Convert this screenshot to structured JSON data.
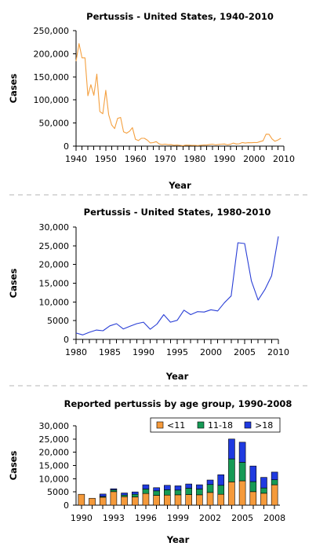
{
  "chart_data": [
    {
      "type": "line",
      "title": "Pertussis - United States, 1940-2010",
      "xlabel": "Year",
      "ylabel": "Cases",
      "xlim": [
        1940,
        2010
      ],
      "ylim": [
        0,
        250000
      ],
      "yticks": [
        "0",
        "50,000",
        "100,000",
        "150,000",
        "200,000",
        "250,000"
      ],
      "xticks": [
        "1940",
        "1950",
        "1960",
        "1970",
        "1980",
        "1990",
        "2000",
        "2010"
      ],
      "grid": false,
      "series": [
        {
          "color": "#f4a040",
          "x": [
            1940,
            1941,
            1942,
            1943,
            1944,
            1945,
            1946,
            1947,
            1948,
            1949,
            1950,
            1951,
            1952,
            1953,
            1954,
            1955,
            1956,
            1957,
            1958,
            1959,
            1960,
            1961,
            1962,
            1963,
            1964,
            1965,
            1966,
            1967,
            1968,
            1969,
            1970,
            1971,
            1972,
            1973,
            1974,
            1975,
            1976,
            1977,
            1978,
            1979,
            1980,
            1981,
            1982,
            1983,
            1984,
            1985,
            1986,
            1987,
            1988,
            1989,
            1990,
            1991,
            1992,
            1993,
            1994,
            1995,
            1996,
            1997,
            1998,
            1999,
            2000,
            2001,
            2002,
            2003,
            2004,
            2005,
            2006,
            2007,
            2008,
            2009
          ],
          "values": [
            184000,
            222000,
            191000,
            191000,
            109000,
            133000,
            110000,
            156000,
            75000,
            70000,
            121000,
            68000,
            46000,
            38000,
            60000,
            62000,
            31000,
            28000,
            32000,
            40000,
            15000,
            12000,
            17000,
            17000,
            13000,
            7000,
            7700,
            9700,
            4800,
            3300,
            4200,
            3000,
            3300,
            1800,
            2400,
            1700,
            1000,
            2200,
            2000,
            1600,
            1700,
            1200,
            1900,
            2500,
            2300,
            3600,
            4200,
            2800,
            3500,
            4200,
            4600,
            2700,
            4100,
            6600,
            4600,
            5100,
            7800,
            6600,
            7400,
            7300,
            7900,
            7600,
            9800,
            11600,
            25800,
            25600,
            15600,
            10500,
            13300,
            17000
          ]
        }
      ]
    },
    {
      "type": "line",
      "title": "Pertussis - United States, 1980-2010",
      "xlabel": "Year",
      "ylabel": "Cases",
      "xlim": [
        1980,
        2010
      ],
      "ylim": [
        0,
        30000
      ],
      "yticks": [
        "0",
        "5000",
        "10,000",
        "15,000",
        "20,000",
        "25,000",
        "30,000"
      ],
      "xticks": [
        "1980",
        "1985",
        "1990",
        "1995",
        "2000",
        "2005",
        "2010"
      ],
      "grid": false,
      "series": [
        {
          "color": "#2a3fd6",
          "x": [
            1980,
            1981,
            1982,
            1983,
            1984,
            1985,
            1986,
            1987,
            1988,
            1989,
            1990,
            1991,
            1992,
            1993,
            1994,
            1995,
            1996,
            1997,
            1998,
            1999,
            2000,
            2001,
            2002,
            2003,
            2004,
            2005,
            2006,
            2007,
            2008,
            2009,
            2010
          ],
          "values": [
            1700,
            1200,
            1900,
            2500,
            2300,
            3600,
            4200,
            2800,
            3500,
            4200,
            4600,
            2700,
            4100,
            6600,
            4600,
            5100,
            7800,
            6600,
            7400,
            7300,
            7900,
            7600,
            9800,
            11600,
            25800,
            25600,
            15600,
            10500,
            13300,
            17000,
            27500
          ]
        }
      ]
    },
    {
      "type": "bar",
      "stacked": true,
      "title": "Reported pertussis by age group, 1990-2008",
      "xlabel": "Year",
      "ylabel": "Cases",
      "ylim": [
        0,
        30000
      ],
      "yticks": [
        "0",
        "5000",
        "10,000",
        "15,000",
        "20,000",
        "25,000",
        "30,000"
      ],
      "categories": [
        "1990",
        "1991",
        "1992",
        "1993",
        "1994",
        "1995",
        "1996",
        "1997",
        "1998",
        "1999",
        "2000",
        "2001",
        "2002",
        "2003",
        "2004",
        "2005",
        "2006",
        "2007",
        "2008"
      ],
      "xtick_labels": [
        "1990",
        "1993",
        "1996",
        "1999",
        "2002",
        "2005",
        "2008"
      ],
      "legend_position": "top-right",
      "grid": false,
      "series": [
        {
          "name": "<11",
          "color": "#f59a3b",
          "values": [
            4100,
            2600,
            3000,
            5100,
            3200,
            3100,
            4400,
            3700,
            3800,
            3900,
            4000,
            3900,
            4800,
            4100,
            8800,
            9200,
            5100,
            4500,
            7700
          ]
        },
        {
          "name": "11-18",
          "color": "#169a55",
          "values": [
            0,
            0,
            300,
            700,
            600,
            1000,
            1700,
            1700,
            2000,
            1800,
            2400,
            2200,
            3000,
            3400,
            8700,
            7000,
            3800,
            2000,
            1900
          ]
        },
        {
          "name": ">18",
          "color": "#1f3ae0",
          "values": [
            0,
            0,
            900,
            400,
            800,
            900,
            1600,
            1200,
            1700,
            1600,
            1600,
            1600,
            1700,
            4000,
            7500,
            7600,
            5900,
            4000,
            2900
          ]
        }
      ]
    }
  ]
}
